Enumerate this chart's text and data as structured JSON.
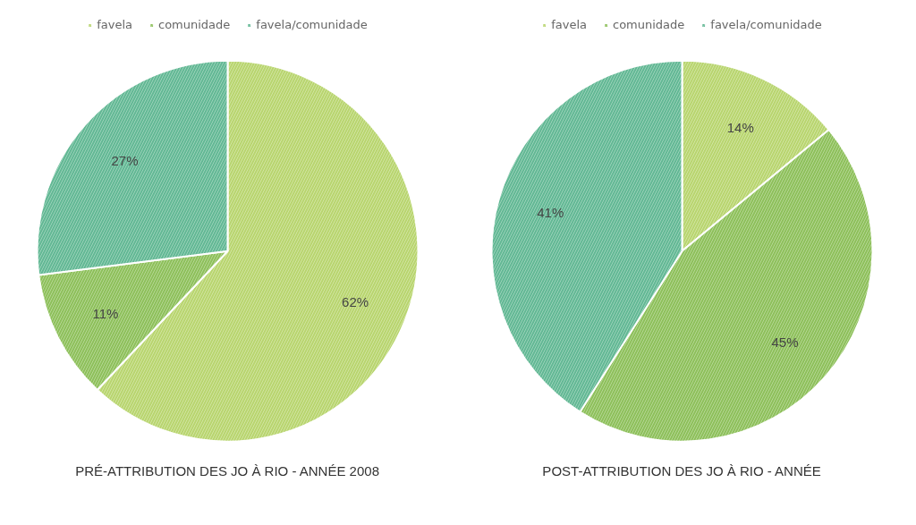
{
  "chart_data": [
    {
      "type": "pie",
      "title": "PRÉ-ATTRIBUTION DES JO À RIO - ANNÉE 2008",
      "categories": [
        "favela",
        "comunidade",
        "favela/comunidade"
      ],
      "values": [
        62,
        11,
        27
      ],
      "colors": [
        "#b8d56e",
        "#8dc05a",
        "#62b894"
      ],
      "value_labels": [
        "62%",
        "11%",
        "27%"
      ],
      "legend": "top"
    },
    {
      "type": "pie",
      "title": "POST-ATTRIBUTION DES JO À RIO - ANNÉE",
      "categories": [
        "favela",
        "comunidade",
        "favela/comunidade"
      ],
      "values": [
        14,
        45,
        41
      ],
      "colors": [
        "#b8d56e",
        "#8dc05a",
        "#62b894"
      ],
      "value_labels": [
        "14%",
        "45%",
        "41%"
      ],
      "legend": "top"
    }
  ]
}
